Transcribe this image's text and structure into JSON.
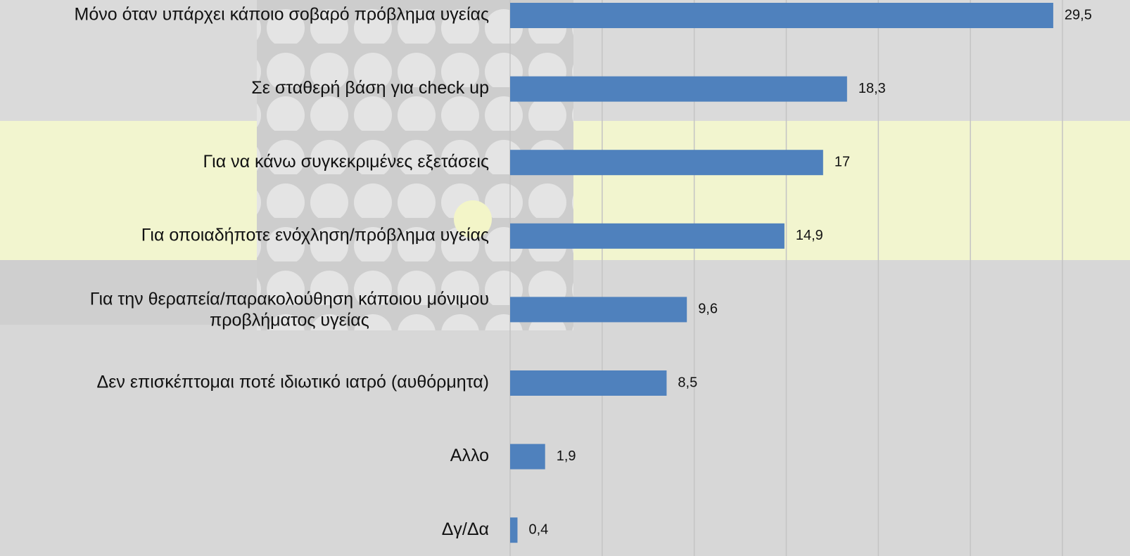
{
  "chart_data": {
    "type": "bar",
    "orientation": "horizontal",
    "categories": [
      "Μόνο όταν υπάρχει κάποιο σοβαρό πρόβλημα υγείας",
      "Σε σταθερή βάση για check up",
      "Για να κάνω συγκεκριμένες εξετάσεις",
      "Για οποιαδήποτε ενόχληση/πρόβλημα υγείας",
      "Για την θεραπεία/παρακολούθηση κάποιου μόνιμου προβλήματος υγείας",
      "Δεν επισκέπτομαι ποτέ ιδιωτικό ιατρό (αυθόρμητα)",
      "Αλλο",
      "Δγ/Δα"
    ],
    "values": [
      29.5,
      18.3,
      17,
      14.9,
      9.6,
      8.5,
      1.9,
      0.4
    ],
    "value_labels": [
      "29,5",
      "18,3",
      "17",
      "14,9",
      "9,6",
      "8,5",
      "1,9",
      "0,4"
    ],
    "color": "#4f81bd",
    "xlim": [
      0,
      30
    ],
    "xticks": [
      0,
      5,
      10,
      15,
      20,
      25,
      30
    ],
    "grid": true
  }
}
